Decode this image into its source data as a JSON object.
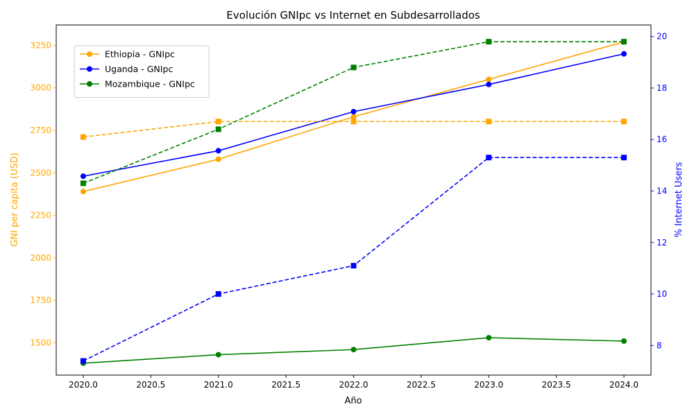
{
  "chart_data": {
    "type": "line",
    "title": "Evolución GNIpc vs Internet en Subdesarrollados",
    "xlabel": "Año",
    "ylabel_left": "GNI per capita (USD)",
    "ylabel_right": "% Internet Users",
    "xlim": [
      2019.8,
      2024.2
    ],
    "ylim_left": [
      1310,
      3370
    ],
    "ylim_right": [
      6.85,
      20.45
    ],
    "x_ticks": [
      2020.0,
      2020.5,
      2021.0,
      2021.5,
      2022.0,
      2022.5,
      2023.0,
      2023.5,
      2024.0
    ],
    "x_tick_labels": [
      "2020.0",
      "2020.5",
      "2021.0",
      "2021.5",
      "2022.0",
      "2022.5",
      "2023.0",
      "2023.5",
      "2024.0"
    ],
    "y_left_ticks": [
      1500,
      1750,
      2000,
      2250,
      2500,
      2750,
      3000,
      3250
    ],
    "y_right_ticks": [
      8,
      10,
      12,
      14,
      16,
      18,
      20
    ],
    "left_axis_color": "#FFA500",
    "right_axis_color": "#0000FF",
    "legend_position": "upper-left",
    "x": [
      2020,
      2021,
      2022,
      2023,
      2024
    ],
    "series": [
      {
        "name": "Ethiopia - GNIpc",
        "axis": "left",
        "color": "#FFA500",
        "style": "solid",
        "marker": "circle",
        "in_legend": true,
        "values": [
          2390,
          2580,
          2830,
          3050,
          3270
        ]
      },
      {
        "name": "Uganda - GNIpc",
        "axis": "left",
        "color": "#0000FF",
        "style": "solid",
        "marker": "circle",
        "in_legend": true,
        "values": [
          2480,
          2630,
          2860,
          3020,
          3200
        ]
      },
      {
        "name": "Mozambique - GNIpc",
        "axis": "left",
        "color": "#008000",
        "style": "solid",
        "marker": "circle",
        "in_legend": true,
        "values": [
          1380,
          1430,
          1460,
          1530,
          1510
        ]
      },
      {
        "axis": "right",
        "color": "#FFA500",
        "style": "dashed",
        "marker": "square",
        "in_legend": false,
        "values": [
          16.1,
          16.7,
          16.7,
          16.7,
          16.7
        ]
      },
      {
        "axis": "right",
        "color": "#0000FF",
        "style": "dashed",
        "marker": "square",
        "in_legend": false,
        "values": [
          7.4,
          10.0,
          11.1,
          15.3,
          15.3
        ]
      },
      {
        "axis": "right",
        "color": "#008000",
        "style": "dashed",
        "marker": "square",
        "in_legend": false,
        "values": [
          14.3,
          16.4,
          18.8,
          19.8,
          19.8
        ]
      }
    ]
  }
}
